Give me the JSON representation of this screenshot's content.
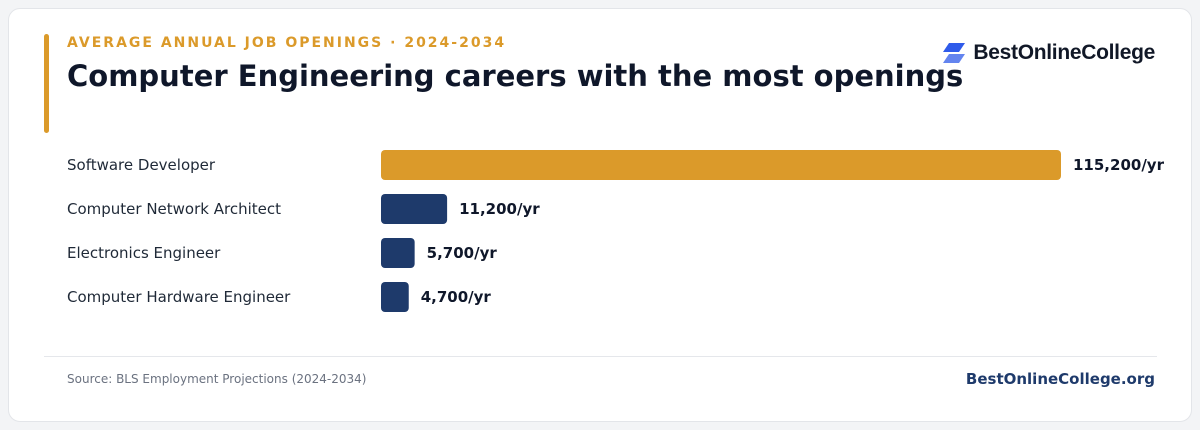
{
  "header": {
    "eyebrow": "AVERAGE ANNUAL JOB OPENINGS · 2024-2034",
    "title": "Computer Engineering careers with the most openings"
  },
  "brand": {
    "name": "BestOnlineCollege",
    "icon": "brand-logo-icon"
  },
  "footer": {
    "source": "Source: BLS Employment Projections (2024-2034)",
    "site": "BestOnlineCollege.org"
  },
  "colors": {
    "accent": "#db9a2a",
    "primary_bar": "#db9a2a",
    "secondary_bar": "#1e3a6b",
    "brand_blue": "#2f5bea",
    "site_text": "#1e3a6b"
  },
  "chart_data": {
    "type": "bar",
    "orientation": "horizontal",
    "categories": [
      "Software Developer",
      "Computer Network Architect",
      "Electronics Engineer",
      "Computer Hardware Engineer"
    ],
    "values": [
      115200,
      11200,
      5700,
      4700
    ],
    "value_labels": [
      "115,200/yr",
      "11,200/yr",
      "5,700/yr",
      "4,700/yr"
    ],
    "highlight_index": 0,
    "xlim": [
      0,
      115200
    ],
    "grid": false,
    "legend": "none"
  }
}
